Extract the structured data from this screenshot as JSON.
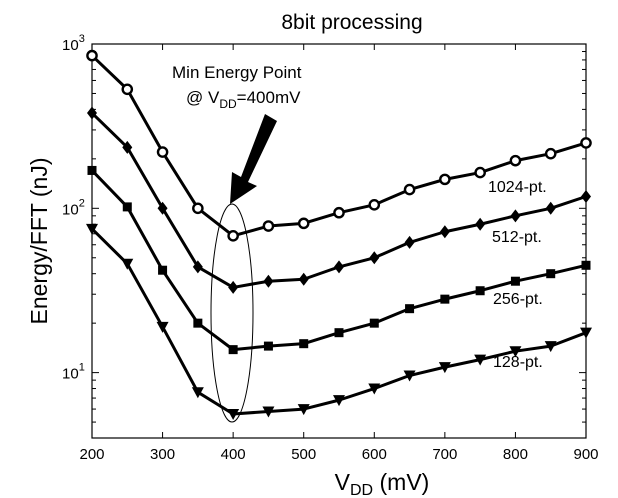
{
  "chart_data": {
    "type": "line",
    "title": "8bit processing",
    "xlabel": "V",
    "xlabel_sub": "DD",
    "xlabel_unit": " (mV)",
    "ylabel": "Energy/FFT (nJ)",
    "xlim": [
      200,
      900
    ],
    "ylim": [
      4,
      1000
    ],
    "yscale": "log",
    "x_ticks": [
      200,
      300,
      400,
      500,
      600,
      700,
      800,
      900
    ],
    "y_ticks": [
      {
        "base": "10",
        "exp": "1",
        "value": 10
      },
      {
        "base": "10",
        "exp": "2",
        "value": 100
      },
      {
        "base": "10",
        "exp": "3",
        "value": 1000
      }
    ],
    "grid": false,
    "x": [
      200,
      250,
      300,
      350,
      400,
      450,
      500,
      550,
      600,
      650,
      700,
      750,
      800,
      850,
      900
    ],
    "series": [
      {
        "name": "1024-pt.",
        "marker": "circle",
        "values": [
          850,
          530,
          220,
          100,
          68,
          78,
          81,
          94,
          105,
          130,
          150,
          165,
          195,
          215,
          250
        ]
      },
      {
        "name": "512-pt.",
        "marker": "diamond",
        "values": [
          380,
          235,
          100,
          44,
          33,
          36,
          37,
          44,
          50,
          62,
          72,
          80,
          90,
          100,
          118
        ]
      },
      {
        "name": "256-pt.",
        "marker": "square",
        "values": [
          170,
          102,
          42,
          20,
          13.8,
          14.5,
          15,
          17.5,
          20,
          24.5,
          28,
          31.5,
          36,
          40,
          45
        ]
      },
      {
        "name": "128-pt.",
        "marker": "triangle-down",
        "values": [
          75,
          46,
          19,
          7.6,
          5.6,
          5.8,
          6,
          6.8,
          8,
          9.6,
          10.8,
          12,
          13.5,
          14.5,
          17.5
        ]
      }
    ],
    "annotations": {
      "line1": "Min Energy Point",
      "line2_prefix": "@ V",
      "line2_sub": "DD",
      "line2_suffix": "=400mV"
    }
  }
}
